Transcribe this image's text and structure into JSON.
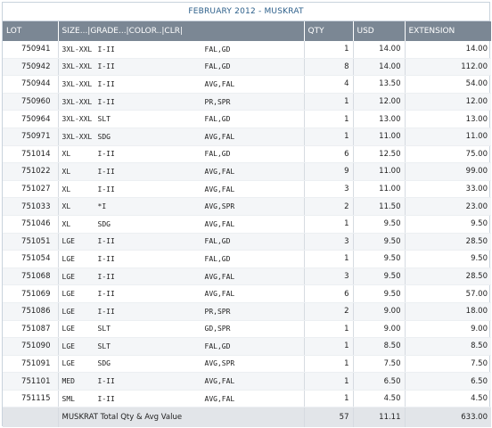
{
  "title": "FEBRUARY 2012 - MUSKRAT",
  "columns": {
    "lot": "LOT",
    "desc": "SIZE...|GRADE...|COLOR..|CLR|",
    "qty": "QTY",
    "usd": "USD",
    "extension": "EXTENSION"
  },
  "rows": [
    {
      "lot": "750941",
      "size": "3XL-XXL",
      "grade": "I-II",
      "color": "FAL,GD",
      "qty": "1",
      "usd": "14.00",
      "ext": "14.00"
    },
    {
      "lot": "750942",
      "size": "3XL-XXL",
      "grade": "I-II",
      "color": "FAL,GD",
      "qty": "8",
      "usd": "14.00",
      "ext": "112.00"
    },
    {
      "lot": "750944",
      "size": "3XL-XXL",
      "grade": "I-II",
      "color": "AVG,FAL",
      "qty": "4",
      "usd": "13.50",
      "ext": "54.00"
    },
    {
      "lot": "750960",
      "size": "3XL-XXL",
      "grade": "I-II",
      "color": "PR,SPR",
      "qty": "1",
      "usd": "12.00",
      "ext": "12.00"
    },
    {
      "lot": "750964",
      "size": "3XL-XXL",
      "grade": "SLT",
      "color": "FAL,GD",
      "qty": "1",
      "usd": "13.00",
      "ext": "13.00"
    },
    {
      "lot": "750971",
      "size": "3XL-XXL",
      "grade": "SDG",
      "color": "AVG,FAL",
      "qty": "1",
      "usd": "11.00",
      "ext": "11.00"
    },
    {
      "lot": "751014",
      "size": "XL",
      "grade": "I-II",
      "color": "FAL,GD",
      "qty": "6",
      "usd": "12.50",
      "ext": "75.00"
    },
    {
      "lot": "751022",
      "size": "XL",
      "grade": "I-II",
      "color": "AVG,FAL",
      "qty": "9",
      "usd": "11.00",
      "ext": "99.00"
    },
    {
      "lot": "751027",
      "size": "XL",
      "grade": "I-II",
      "color": "AVG,FAL",
      "qty": "3",
      "usd": "11.00",
      "ext": "33.00"
    },
    {
      "lot": "751033",
      "size": "XL",
      "grade": "*I",
      "color": "AVG,SPR",
      "qty": "2",
      "usd": "11.50",
      "ext": "23.00"
    },
    {
      "lot": "751046",
      "size": "XL",
      "grade": "SDG",
      "color": "AVG,FAL",
      "qty": "1",
      "usd": "9.50",
      "ext": "9.50"
    },
    {
      "lot": "751051",
      "size": "LGE",
      "grade": "I-II",
      "color": "FAL,GD",
      "qty": "3",
      "usd": "9.50",
      "ext": "28.50"
    },
    {
      "lot": "751054",
      "size": "LGE",
      "grade": "I-II",
      "color": "FAL,GD",
      "qty": "1",
      "usd": "9.50",
      "ext": "9.50"
    },
    {
      "lot": "751068",
      "size": "LGE",
      "grade": "I-II",
      "color": "AVG,FAL",
      "qty": "3",
      "usd": "9.50",
      "ext": "28.50"
    },
    {
      "lot": "751069",
      "size": "LGE",
      "grade": "I-II",
      "color": "AVG,FAL",
      "qty": "6",
      "usd": "9.50",
      "ext": "57.00"
    },
    {
      "lot": "751086",
      "size": "LGE",
      "grade": "I-II",
      "color": "PR,SPR",
      "qty": "2",
      "usd": "9.00",
      "ext": "18.00"
    },
    {
      "lot": "751087",
      "size": "LGE",
      "grade": "SLT",
      "color": "GD,SPR",
      "qty": "1",
      "usd": "9.00",
      "ext": "9.00"
    },
    {
      "lot": "751090",
      "size": "LGE",
      "grade": "SLT",
      "color": "FAL,GD",
      "qty": "1",
      "usd": "8.50",
      "ext": "8.50"
    },
    {
      "lot": "751091",
      "size": "LGE",
      "grade": "SDG",
      "color": "AVG,SPR",
      "qty": "1",
      "usd": "7.50",
      "ext": "7.50"
    },
    {
      "lot": "751101",
      "size": "MED",
      "grade": "I-II",
      "color": "AVG,FAL",
      "qty": "1",
      "usd": "6.50",
      "ext": "6.50"
    },
    {
      "lot": "751115",
      "size": "SML",
      "grade": "I-II",
      "color": "AVG,FAL",
      "qty": "1",
      "usd": "4.50",
      "ext": "4.50"
    }
  ],
  "total": {
    "label": "MUSKRAT Total Qty & Avg Value",
    "qty": "57",
    "usd": "11.11",
    "ext": "633.00"
  }
}
